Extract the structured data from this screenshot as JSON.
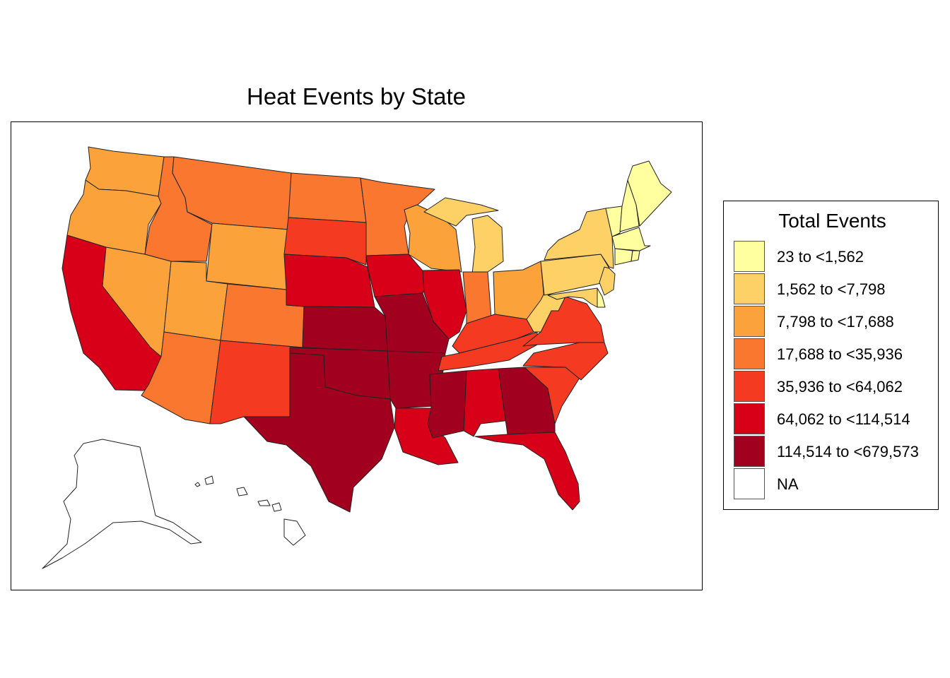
{
  "title": "Heat Events by State",
  "legend": {
    "title": "Total Events",
    "classes": [
      {
        "label": "23 to <1,562",
        "color": "#FFFF9F"
      },
      {
        "label": "1,562 to <7,798",
        "color": "#FED166"
      },
      {
        "label": "7,798 to <17,688",
        "color": "#FBA23A"
      },
      {
        "label": "17,688 to <35,936",
        "color": "#FA772F"
      },
      {
        "label": "35,936 to <64,062",
        "color": "#F53A22"
      },
      {
        "label": "64,062 to <114,514",
        "color": "#D80019"
      },
      {
        "label": "114,514 to <679,573",
        "color": "#A1001F"
      },
      {
        "label": "NA",
        "color": "#FFFFFF"
      }
    ]
  },
  "chart_data": {
    "type": "choropleth",
    "title": "Heat Events by State",
    "legend_title": "Total Events",
    "legend_position": "right",
    "state_class": {
      "ME": 0,
      "NH": 0,
      "VT": 0,
      "MA": 0,
      "CT": 0,
      "RI": 0,
      "DE": 0,
      "NY": 1,
      "PA": 1,
      "NJ": 1,
      "MD": 1,
      "WV": 1,
      "MI": 1,
      "WA": 2,
      "OR": 2,
      "NV": 2,
      "UT": 2,
      "WY": 2,
      "WI": 2,
      "OH": 2,
      "ID": 3,
      "MT": 3,
      "ND": 3,
      "MN": 3,
      "CO": 3,
      "AZ": 3,
      "IN": 3,
      "SD": 4,
      "NM": 4,
      "KY": 4,
      "TN": 4,
      "VA": 4,
      "NC": 4,
      "SC": 4,
      "CA": 5,
      "NE": 5,
      "IA": 5,
      "IL": 5,
      "LA": 5,
      "AL": 5,
      "FL": 5,
      "KS": 6,
      "MO": 6,
      "OK": 6,
      "TX": 6,
      "AR": 6,
      "MS": 6,
      "GA": 6,
      "AK": 7,
      "HI": 7
    }
  }
}
